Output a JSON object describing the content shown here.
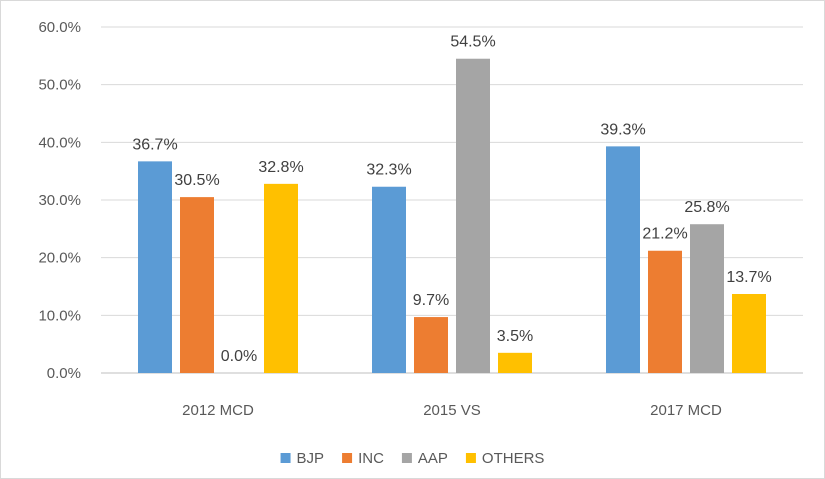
{
  "chart_data": {
    "type": "bar",
    "title": "",
    "xlabel": "",
    "ylabel": "",
    "categories": [
      "2012 MCD",
      "2015 VS",
      "2017 MCD"
    ],
    "series": [
      {
        "name": "BJP",
        "color": "#5b9bd5",
        "values": [
          36.7,
          32.3,
          39.3
        ],
        "labels": [
          "36.7%",
          "32.3%",
          "39.3%"
        ]
      },
      {
        "name": "INC",
        "color": "#ed7d31",
        "values": [
          30.5,
          9.7,
          21.2
        ],
        "labels": [
          "30.5%",
          "9.7%",
          "21.2%"
        ]
      },
      {
        "name": "AAP",
        "color": "#a5a5a5",
        "values": [
          0.0,
          54.5,
          25.8
        ],
        "labels": [
          "0.0%",
          "54.5%",
          "25.8%"
        ]
      },
      {
        "name": "OTHERS",
        "color": "#ffc000",
        "values": [
          32.8,
          3.5,
          13.7
        ],
        "labels": [
          "32.8%",
          "3.5%",
          "13.7%"
        ]
      }
    ],
    "ylim": [
      0,
      60
    ],
    "yticks": [
      0,
      10,
      20,
      30,
      40,
      50,
      60
    ],
    "ytick_labels": [
      "0.0%",
      "10.0%",
      "20.0%",
      "30.0%",
      "40.0%",
      "50.0%",
      "60.0%"
    ],
    "grid": true,
    "legend_position": "bottom"
  }
}
